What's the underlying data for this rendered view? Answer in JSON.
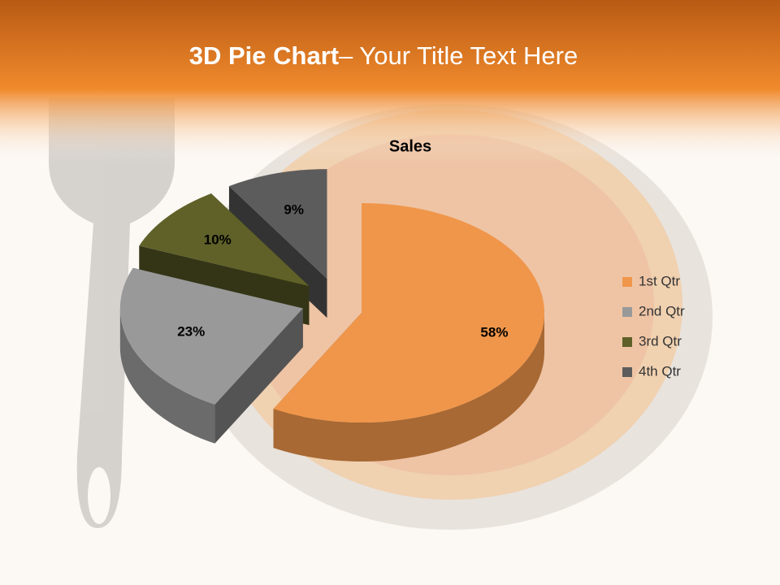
{
  "slide": {
    "title_bold": "3D Pie Chart",
    "title_rest": "– Your Title Text Here"
  },
  "chart_data": {
    "type": "pie",
    "title": "Sales",
    "categories": [
      "1st Qtr",
      "2nd Qtr",
      "3rd Qtr",
      "4th Qtr"
    ],
    "values": [
      58,
      23,
      10,
      9
    ],
    "value_labels": [
      "58%",
      "23%",
      "10%",
      "9%"
    ],
    "colors": [
      "#f0964a",
      "#999999",
      "#5f6128",
      "#5c5c5c"
    ],
    "legend": "right"
  }
}
